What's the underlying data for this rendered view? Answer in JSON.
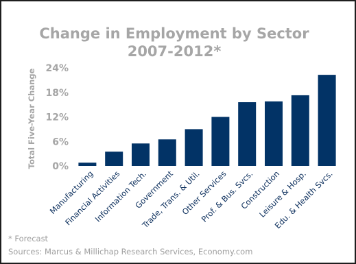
{
  "chart_data": {
    "type": "bar",
    "title": "Change in Employment by Sector",
    "subtitle": "2007-2012*",
    "ylabel": "Total Five-Year Change",
    "xlabel": "",
    "categories": [
      "Manufacturing",
      "Financial Activities",
      "Information Tech.",
      "Government",
      "Trade, Trans. & Util.",
      "Other Services",
      "Prof. & Bus. Svcs.",
      "Construction",
      "Leisure & Hosp.",
      "Edu. & Health Svcs."
    ],
    "values": [
      0.8,
      3.5,
      5.5,
      6.5,
      9.0,
      12.0,
      15.6,
      15.8,
      17.3,
      22.3
    ],
    "ylim": [
      0,
      24
    ],
    "yticks": [
      0,
      6,
      12,
      18,
      24
    ],
    "ytick_labels": [
      "0%",
      "6%",
      "12%",
      "18%",
      "24%"
    ],
    "bar_color": "#023366",
    "grid": false,
    "legend": "none"
  },
  "footnotes": {
    "forecast_note": "* Forecast",
    "sources": "Sources: Marcus & Millichap Research Services, Economy.com"
  }
}
